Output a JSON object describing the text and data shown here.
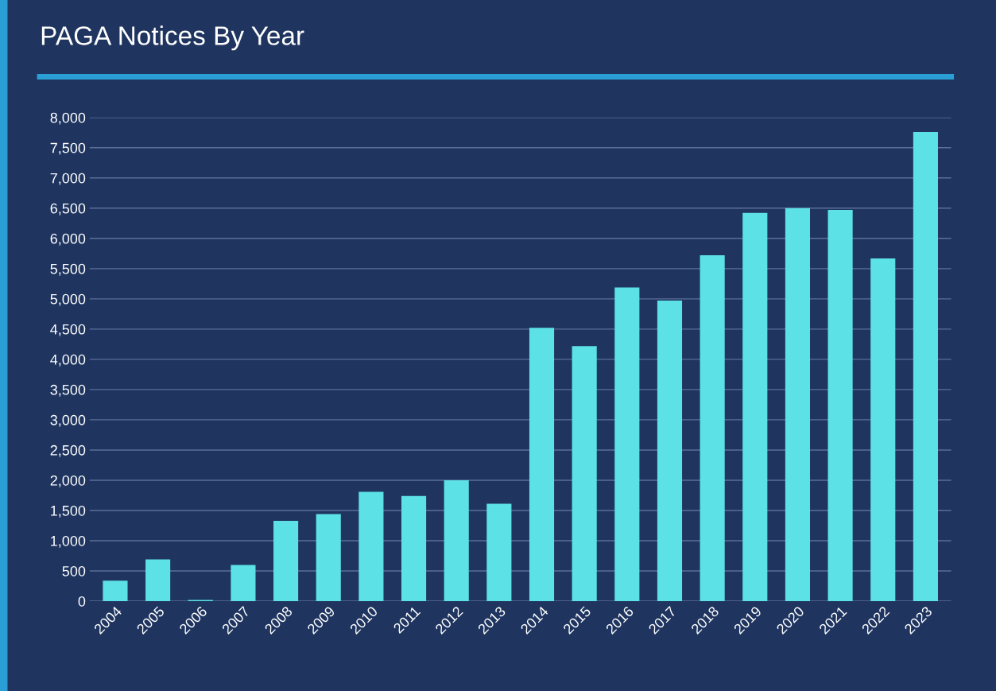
{
  "chart_data": {
    "type": "bar",
    "title": "PAGA Notices By Year",
    "categories": [
      "2004",
      "2005",
      "2006",
      "2007",
      "2008",
      "2009",
      "2010",
      "2011",
      "2012",
      "2013",
      "2014",
      "2015",
      "2016",
      "2017",
      "2018",
      "2019",
      "2020",
      "2021",
      "2022",
      "2023"
    ],
    "values": [
      340,
      690,
      20,
      600,
      1330,
      1440,
      1810,
      1740,
      2000,
      1610,
      4520,
      4220,
      5190,
      4970,
      5720,
      6420,
      6500,
      6470,
      5670,
      7760
    ],
    "color": "#5ce1e6",
    "ylim": [
      0,
      8000
    ],
    "yticks": [
      {
        "value": 0,
        "label": "0"
      },
      {
        "value": 500,
        "label": "500"
      },
      {
        "value": 1000,
        "label": "1,000"
      },
      {
        "value": 1500,
        "label": "1,500"
      },
      {
        "value": 2000,
        "label": "2,000"
      },
      {
        "value": 2500,
        "label": "2,500"
      },
      {
        "value": 3000,
        "label": "3,000"
      },
      {
        "value": 3500,
        "label": "3,500"
      },
      {
        "value": 4000,
        "label": "4,000"
      },
      {
        "value": 4500,
        "label": "4,500"
      },
      {
        "value": 5000,
        "label": "5,000"
      },
      {
        "value": 5500,
        "label": "5,500"
      },
      {
        "value": 6000,
        "label": "6,000"
      },
      {
        "value": 6500,
        "label": "6,500"
      },
      {
        "value": 7000,
        "label": "7,000"
      },
      {
        "value": 7500,
        "label": "7,500"
      },
      {
        "value": 8000,
        "label": "8,000"
      }
    ],
    "grid": "y"
  }
}
